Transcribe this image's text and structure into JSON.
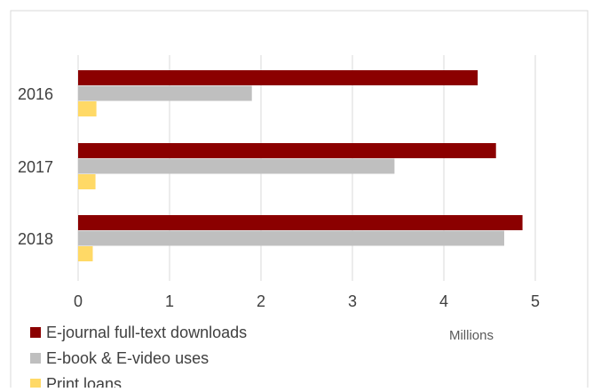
{
  "chart_data": {
    "type": "bar",
    "orientation": "horizontal",
    "categories": [
      "2016",
      "2017",
      "2018"
    ],
    "series": [
      {
        "name": "E-journal full-text downloads",
        "color": "#8B0000",
        "values": [
          4.37,
          4.57,
          4.86
        ]
      },
      {
        "name": "E-book & E-video uses",
        "color": "#BFBFBF",
        "values": [
          1.9,
          3.46,
          4.66
        ]
      },
      {
        "name": "Print loans",
        "color": "#FFD966",
        "values": [
          0.2,
          0.19,
          0.16
        ]
      }
    ],
    "xlim": [
      0,
      5
    ],
    "xticks": [
      "0",
      "1",
      "2",
      "3",
      "4",
      "5"
    ],
    "xlabel": "Millions",
    "grid": "vertical",
    "legend": "bottom-left"
  }
}
